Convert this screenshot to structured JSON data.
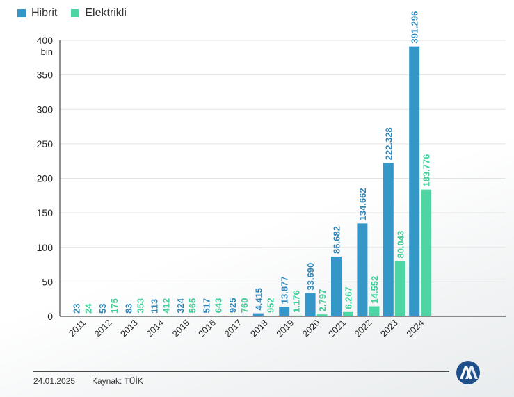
{
  "legend": {
    "hibrit": "Hibrit",
    "elektrikli": "Elektrikli"
  },
  "footer": {
    "date": "24.01.2025",
    "source": "Kaynak: TÜİK"
  },
  "logo": {
    "name": "AA"
  },
  "chart_data": {
    "type": "bar",
    "title": "",
    "xlabel": "",
    "ylabel": "bin",
    "ylim": [
      0,
      400
    ],
    "yticks": [
      0,
      50,
      100,
      150,
      200,
      250,
      300,
      350,
      400
    ],
    "ytick_labels": [
      "0",
      "50",
      "100",
      "150",
      "200",
      "250",
      "300",
      "350",
      "400"
    ],
    "y_unit": "bin",
    "categories": [
      "2011",
      "2012",
      "2013",
      "2014",
      "2015",
      "2016",
      "2017",
      "2018",
      "2019",
      "2020",
      "2021",
      "2022",
      "2023",
      "2024"
    ],
    "series": [
      {
        "name": "Hibrit",
        "color": "#3596c8",
        "values": [
          0.023,
          0.053,
          0.083,
          0.113,
          0.324,
          0.517,
          0.925,
          4.415,
          13.877,
          33.69,
          86.682,
          134.662,
          222.328,
          391.296
        ],
        "labels": [
          "23",
          "53",
          "83",
          "113",
          "324",
          "517",
          "925",
          "4.415",
          "13.877",
          "33.690",
          "86.682",
          "134.662",
          "222.328",
          "391.296"
        ]
      },
      {
        "name": "Elektrikli",
        "color": "#4dd6a3",
        "values": [
          0.024,
          0.175,
          0.353,
          0.412,
          0.565,
          0.643,
          0.76,
          0.952,
          1.176,
          2.797,
          6.267,
          14.552,
          80.043,
          183.776
        ],
        "labels": [
          "24",
          "175",
          "353",
          "412",
          "565",
          "643",
          "760",
          "952",
          "1.176",
          "2.797",
          "6.267",
          "14.552",
          "80.043",
          "183.776"
        ]
      }
    ],
    "grid": true,
    "legend_position": "top-left"
  }
}
